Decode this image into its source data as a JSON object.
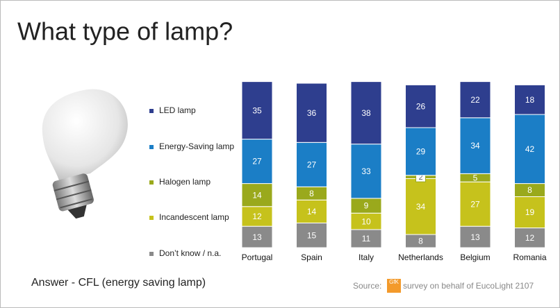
{
  "chart_data": {
    "type": "stacked_bar",
    "title": "What type of lamp?",
    "categories": [
      "Portugal",
      "Spain",
      "Italy",
      "Netherlands",
      "Belgium",
      "Romania"
    ],
    "series": [
      {
        "name": "Don’t know / n.a.",
        "color": "#8a8a8a",
        "values": [
          13,
          15,
          11,
          8,
          13,
          12
        ]
      },
      {
        "name": "Incandescent lamp",
        "color": "#c6c21c",
        "values": [
          12,
          14,
          10,
          34,
          27,
          19
        ]
      },
      {
        "name": "Halogen lamp",
        "color": "#9aa91c",
        "values": [
          14,
          8,
          9,
          2,
          5,
          8
        ]
      },
      {
        "name": "Energy-Saving lamp",
        "color": "#1b7ec6",
        "values": [
          27,
          27,
          33,
          29,
          34,
          42
        ]
      },
      {
        "name": "LED lamp",
        "color": "#2e3e8e",
        "values": [
          35,
          36,
          38,
          26,
          22,
          18
        ]
      }
    ],
    "ylim": [
      0,
      100
    ]
  },
  "answer": "Answer - CFL (energy saving lamp)",
  "source": {
    "label": "Source:",
    "logo": "GfK",
    "text": "survey on behalf of EucoLight 2107"
  }
}
